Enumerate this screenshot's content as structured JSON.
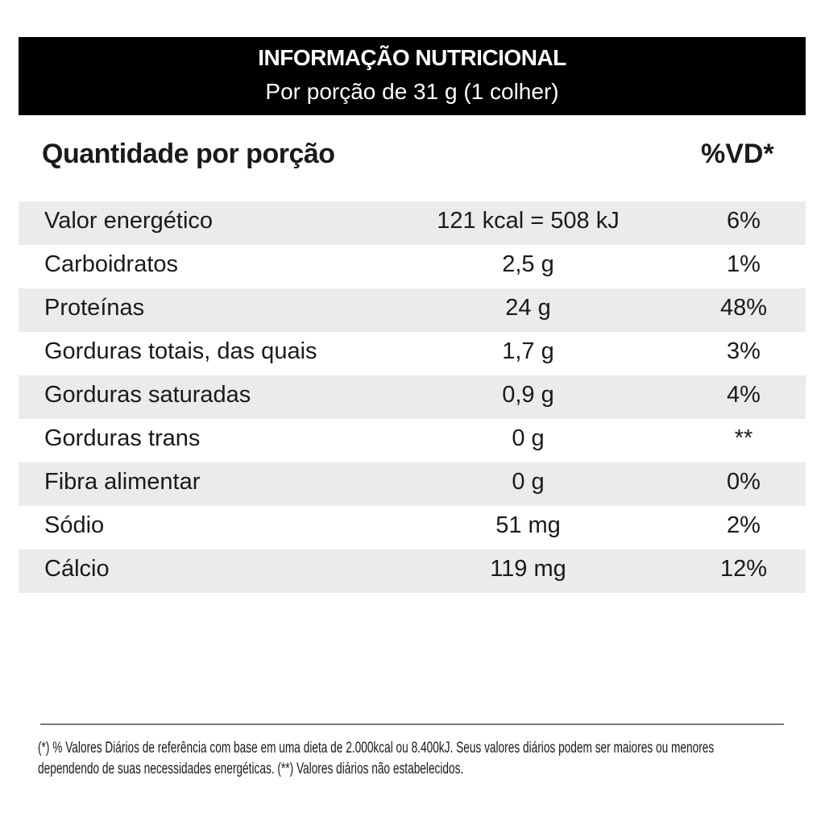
{
  "header": {
    "title": "INFORMAÇÃO NUTRICIONAL",
    "subtitle": "Por porção de 31 g (1 colher)"
  },
  "columns": {
    "quantity": "Quantidade por porção",
    "dv": "%VD*"
  },
  "rows": [
    {
      "label": "Valor energético",
      "amount": "121 kcal = 508 kJ",
      "dv": "6%"
    },
    {
      "label": "Carboidratos",
      "amount": "2,5 g",
      "dv": "1%"
    },
    {
      "label": "Proteínas",
      "amount": "24 g",
      "dv": "48%"
    },
    {
      "label": "Gorduras totais, das quais",
      "amount": "1,7 g",
      "dv": "3%"
    },
    {
      "label": "Gorduras saturadas",
      "amount": "0,9 g",
      "dv": "4%"
    },
    {
      "label": "Gorduras trans",
      "amount": "0 g",
      "dv": "**"
    },
    {
      "label": "Fibra alimentar",
      "amount": "0 g",
      "dv": "0%"
    },
    {
      "label": "Sódio",
      "amount": "51 mg",
      "dv": "2%"
    },
    {
      "label": "Cálcio",
      "amount": "119 mg",
      "dv": "12%"
    }
  ],
  "footnote": {
    "line1": "(*) % Valores Diários de referência com base em uma dieta de 2.000kcal ou 8.400kJ. Seus valores diários podem ser maiores ou menores",
    "line2": "dependendo de suas necessidades energéticas. (**) Valores diários não estabelecidos."
  }
}
